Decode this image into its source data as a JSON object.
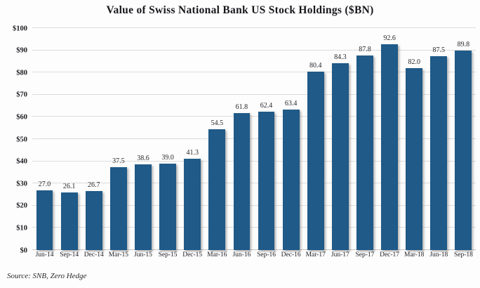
{
  "chart_data": {
    "type": "bar",
    "title": "Value of Swiss National Bank US Stock Holdings ($BN)",
    "categories": [
      "Jun-14",
      "Sep-14",
      "Dec-14",
      "Mar-15",
      "Jun-15",
      "Sep-15",
      "Dec-15",
      "Mar-16",
      "Jun-16",
      "Sep-16",
      "Dec-16",
      "Mar-17",
      "Jun-17",
      "Sep-17",
      "Dec-17",
      "Mar-18",
      "Jun-18",
      "Sep-18"
    ],
    "values": [
      27.0,
      26.1,
      26.7,
      37.5,
      38.6,
      39.0,
      41.3,
      54.5,
      61.8,
      62.4,
      63.4,
      80.4,
      84.3,
      87.8,
      92.6,
      82.0,
      87.5,
      89.8
    ],
    "value_labels": [
      "27.0",
      "26.1",
      "26.7",
      "37.5",
      "38.6",
      "39.0",
      "41.3",
      "54.5",
      "61.8",
      "62.4",
      "63.4",
      "80.4",
      "84.3",
      "87.8",
      "92.6",
      "82.0",
      "87.5",
      "89.8"
    ],
    "xlabel": "",
    "ylabel": "",
    "ylim": [
      0,
      100
    ],
    "y_ticks": [
      "$0",
      "$10",
      "$20",
      "$30",
      "$40",
      "$50",
      "$60",
      "$70",
      "$80",
      "$90",
      "$100"
    ],
    "grid": true,
    "legend": "none",
    "source": "Source: SNB, Zero Hedge",
    "bar_color": "#1f5a88",
    "gridline_color": "#dcdcdc"
  }
}
